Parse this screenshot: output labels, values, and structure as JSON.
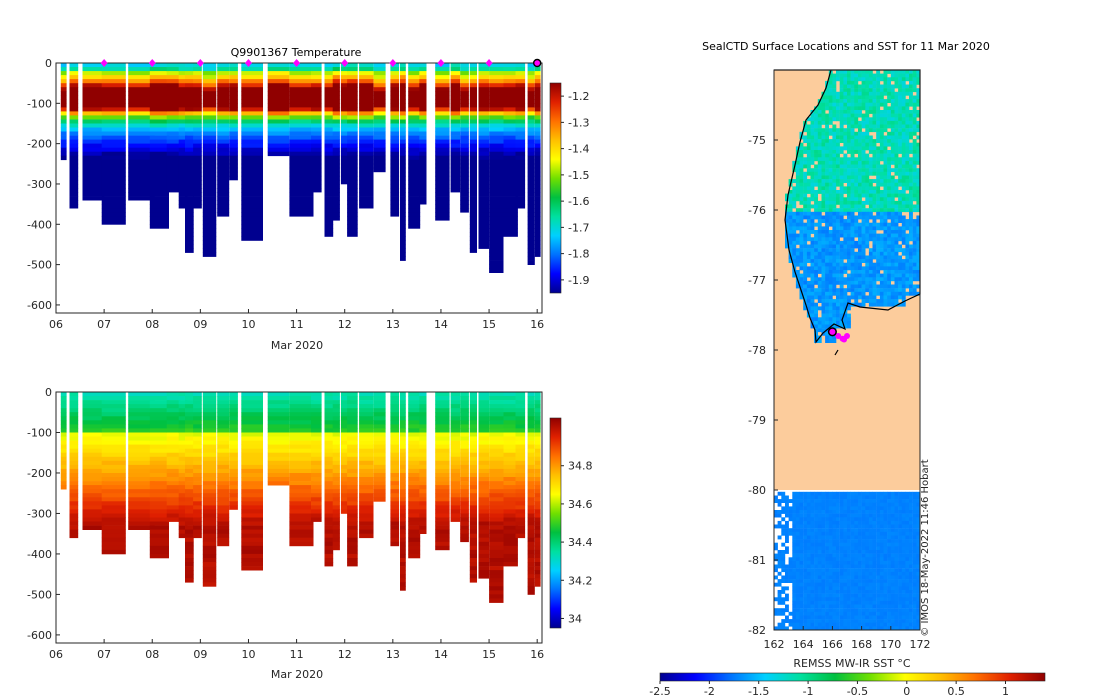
{
  "colors": {
    "land": "#fccc9c",
    "marker": "#ff00ff",
    "stops": [
      "#00008f",
      "#0000ff",
      "#0070ff",
      "#00d0ff",
      "#00e0a0",
      "#00c040",
      "#70e000",
      "#ffff00",
      "#ffc000",
      "#ff7000",
      "#e02000",
      "#900000"
    ]
  },
  "chart_data": [
    {
      "type": "heatmap",
      "title": "Q9901367  Temperature",
      "xlabel": "Mar 2020",
      "x_ticks": [
        "06",
        "07",
        "08",
        "09",
        "10",
        "11",
        "12",
        "13",
        "14",
        "15",
        "16"
      ],
      "y_ticks": [
        "0",
        "-100",
        "-200",
        "-300",
        "-400",
        "-500",
        "-600"
      ],
      "ylim": [
        -620,
        0
      ],
      "x_range_days": [
        6,
        16.1
      ],
      "colorbar": {
        "range": [
          -1.95,
          -1.15
        ],
        "ticks": [
          "-1.2",
          "-1.3",
          "-1.4",
          "-1.5",
          "-1.6",
          "-1.7",
          "-1.8",
          "-1.9"
        ],
        "tick_values": [
          -1.2,
          -1.3,
          -1.4,
          -1.5,
          -1.6,
          -1.7,
          -1.8,
          -1.9
        ]
      },
      "surface_markers_day": [
        7,
        8,
        9,
        10,
        11,
        12,
        13,
        14,
        15,
        16
      ],
      "last_profile_day": 16
    },
    {
      "type": "heatmap",
      "title": "",
      "xlabel": "Mar 2020",
      "x_ticks": [
        "06",
        "07",
        "08",
        "09",
        "10",
        "11",
        "12",
        "13",
        "14",
        "15",
        "16"
      ],
      "y_ticks": [
        "0",
        "-100",
        "-200",
        "-300",
        "-400",
        "-500",
        "-600"
      ],
      "ylim": [
        -620,
        0
      ],
      "x_range_days": [
        6,
        16.1
      ],
      "colorbar": {
        "range": [
          33.95,
          35.05
        ],
        "ticks": [
          "34.8",
          "34.6",
          "34.4",
          "34.2",
          "34"
        ],
        "tick_values": [
          34.8,
          34.6,
          34.4,
          34.2,
          34.0
        ]
      }
    },
    {
      "type": "map",
      "title": "SealCTD Surface Locations and SST for 11 Mar 2020",
      "x_ticks": [
        "162",
        "164",
        "166",
        "168",
        "170",
        "172"
      ],
      "x_tick_values": [
        162,
        164,
        166,
        168,
        170,
        172
      ],
      "y_ticks": [
        "-75",
        "-76",
        "-77",
        "-78",
        "-79",
        "-80",
        "-81",
        "-82"
      ],
      "y_tick_values": [
        -75,
        -76,
        -77,
        -78,
        -79,
        -80,
        -81,
        -82
      ],
      "lon_range": [
        162,
        172
      ],
      "lat_range": [
        -82,
        -74
      ],
      "colorbar": {
        "label": "REMSS MW-IR SST °C",
        "range": [
          -2.5,
          1.4
        ],
        "ticks": [
          "-2.5",
          "-2",
          "-1.5",
          "-1",
          "-0.5",
          "0",
          "0.5",
          "1"
        ],
        "tick_values": [
          -2.5,
          -2,
          -1.5,
          -1,
          -0.5,
          0,
          0.5,
          1
        ]
      },
      "credit": "© IMOS 18-May-2022 11:46 Hobart"
    }
  ],
  "profiles": [
    {
      "d": 6.1,
      "w": 0.12,
      "depth": 240
    },
    {
      "d": 6.28,
      "w": 0.18,
      "depth": 360
    },
    {
      "d": 6.55,
      "w": 0.45,
      "depth": 335
    },
    {
      "d": 6.95,
      "w": 0.5,
      "depth": 400
    },
    {
      "d": 7.5,
      "w": 0.55,
      "depth": 340
    },
    {
      "d": 7.95,
      "w": 0.4,
      "depth": 405
    },
    {
      "d": 8.3,
      "w": 0.28,
      "depth": 315
    },
    {
      "d": 8.55,
      "w": 0.18,
      "depth": 355
    },
    {
      "d": 8.68,
      "w": 0.18,
      "depth": 470
    },
    {
      "d": 8.85,
      "w": 0.18,
      "depth": 360
    },
    {
      "d": 9.05,
      "w": 0.28,
      "depth": 480
    },
    {
      "d": 9.35,
      "w": 0.25,
      "depth": 375
    },
    {
      "d": 9.6,
      "w": 0.18,
      "depth": 290
    },
    {
      "d": 9.85,
      "w": 0.45,
      "depth": 435
    },
    {
      "d": 10.4,
      "w": 0.45,
      "depth": 225
    },
    {
      "d": 10.85,
      "w": 0.5,
      "depth": 380
    },
    {
      "d": 11.3,
      "w": 0.22,
      "depth": 320
    },
    {
      "d": 11.58,
      "w": 0.18,
      "depth": 430
    },
    {
      "d": 11.75,
      "w": 0.15,
      "depth": 390
    },
    {
      "d": 11.92,
      "w": 0.2,
      "depth": 300
    },
    {
      "d": 12.05,
      "w": 0.22,
      "depth": 425
    },
    {
      "d": 12.3,
      "w": 0.3,
      "depth": 360
    },
    {
      "d": 12.6,
      "w": 0.25,
      "depth": 270
    },
    {
      "d": 12.95,
      "w": 0.18,
      "depth": 375
    },
    {
      "d": 13.15,
      "w": 0.12,
      "depth": 490
    },
    {
      "d": 13.32,
      "w": 0.25,
      "depth": 410
    },
    {
      "d": 13.55,
      "w": 0.15,
      "depth": 345
    },
    {
      "d": 13.88,
      "w": 0.3,
      "depth": 385
    },
    {
      "d": 14.2,
      "w": 0.2,
      "depth": 320
    },
    {
      "d": 14.4,
      "w": 0.18,
      "depth": 365
    },
    {
      "d": 14.6,
      "w": 0.15,
      "depth": 470
    },
    {
      "d": 14.78,
      "w": 0.22,
      "depth": 455
    },
    {
      "d": 15.0,
      "w": 0.3,
      "depth": 520
    },
    {
      "d": 15.3,
      "w": 0.3,
      "depth": 430
    },
    {
      "d": 15.55,
      "w": 0.2,
      "depth": 355
    },
    {
      "d": 15.8,
      "w": 0.15,
      "depth": 500
    },
    {
      "d": 15.95,
      "w": 0.12,
      "depth": 480
    }
  ]
}
